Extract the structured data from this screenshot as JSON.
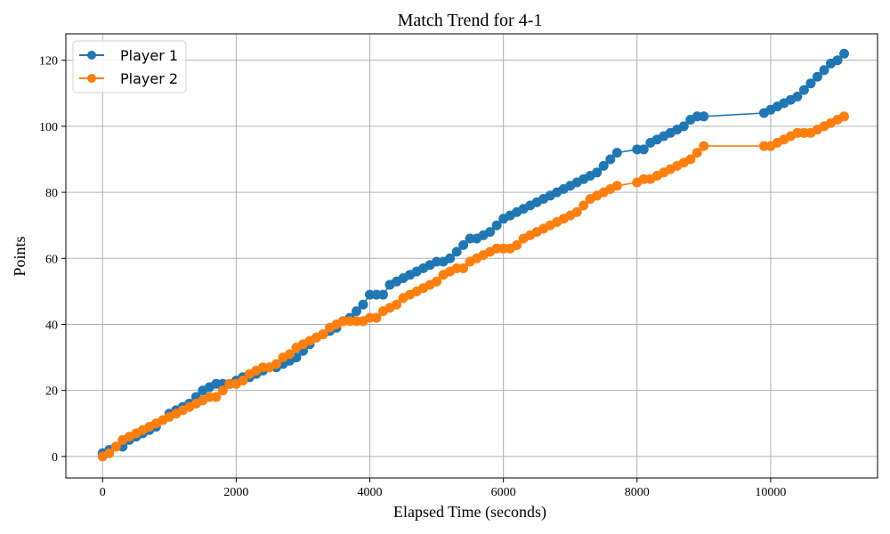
{
  "chart_data": {
    "type": "line",
    "title": "Match Trend for 4-1",
    "xlabel": "Elapsed Time (seconds)",
    "ylabel": "Points",
    "xlim": [
      -550,
      11600
    ],
    "ylim": [
      -6.5,
      128
    ],
    "x_ticks": [
      0,
      2000,
      4000,
      6000,
      8000,
      10000
    ],
    "y_ticks": [
      0,
      20,
      40,
      60,
      80,
      100,
      120
    ],
    "grid": true,
    "legend_position": "top-left",
    "series": [
      {
        "name": "Player 1",
        "color": "#1f77b4",
        "x": [
          0,
          100,
          200,
          300,
          400,
          500,
          600,
          700,
          800,
          900,
          1000,
          1100,
          1200,
          1300,
          1400,
          1500,
          1600,
          1700,
          1800,
          1900,
          2000,
          2100,
          2200,
          2300,
          2400,
          2500,
          2600,
          2700,
          2800,
          2900,
          3000,
          3100,
          3200,
          3300,
          3400,
          3500,
          3600,
          3700,
          3800,
          3900,
          4000,
          4100,
          4200,
          4300,
          4400,
          4500,
          4600,
          4700,
          4800,
          4900,
          5000,
          5100,
          5200,
          5300,
          5400,
          5500,
          5600,
          5700,
          5800,
          5900,
          6000,
          6100,
          6200,
          6300,
          6400,
          6500,
          6600,
          6700,
          6800,
          6900,
          7000,
          7100,
          7200,
          7300,
          7400,
          7500,
          7600,
          7700,
          8000,
          8100,
          8200,
          8300,
          8400,
          8500,
          8600,
          8700,
          8800,
          8900,
          9000,
          9900,
          10000,
          10100,
          10200,
          10300,
          10400,
          10500,
          10600,
          10700,
          10800,
          10900,
          11000,
          11100
        ],
        "y": [
          1,
          2,
          3,
          3,
          5,
          6,
          7,
          8,
          9,
          11,
          13,
          14,
          15,
          16,
          18,
          20,
          21,
          22,
          22,
          22,
          23,
          24,
          24,
          25,
          26,
          27,
          27,
          28,
          29,
          30,
          32,
          34,
          36,
          37,
          38,
          39,
          41,
          42,
          44,
          46,
          49,
          49,
          49,
          52,
          53,
          54,
          55,
          56,
          57,
          58,
          59,
          59,
          60,
          62,
          64,
          66,
          66,
          67,
          68,
          70,
          72,
          73,
          74,
          75,
          76,
          77,
          78,
          79,
          80,
          81,
          82,
          83,
          84,
          85,
          86,
          88,
          90,
          92,
          93,
          93,
          95,
          96,
          97,
          98,
          99,
          100,
          102,
          103,
          103,
          104,
          105,
          106,
          107,
          108,
          109,
          111,
          113,
          115,
          117,
          119,
          120,
          122
        ]
      },
      {
        "name": "Player 2",
        "color": "#ff7f0e",
        "x": [
          0,
          100,
          200,
          300,
          400,
          500,
          600,
          700,
          800,
          900,
          1000,
          1100,
          1200,
          1300,
          1400,
          1500,
          1600,
          1700,
          1800,
          1900,
          2000,
          2100,
          2200,
          2300,
          2400,
          2500,
          2600,
          2700,
          2800,
          2900,
          3000,
          3100,
          3200,
          3300,
          3400,
          3500,
          3600,
          3700,
          3800,
          3900,
          4000,
          4100,
          4200,
          4300,
          4400,
          4500,
          4600,
          4700,
          4800,
          4900,
          5000,
          5100,
          5200,
          5300,
          5400,
          5500,
          5600,
          5700,
          5800,
          5900,
          6000,
          6100,
          6200,
          6300,
          6400,
          6500,
          6600,
          6700,
          6800,
          6900,
          7000,
          7100,
          7200,
          7300,
          7400,
          7500,
          7600,
          7700,
          8000,
          8100,
          8200,
          8300,
          8400,
          8500,
          8600,
          8700,
          8800,
          8900,
          9000,
          9900,
          10000,
          10100,
          10200,
          10300,
          10400,
          10500,
          10600,
          10700,
          10800,
          10900,
          11000,
          11100
        ],
        "y": [
          0,
          1,
          3,
          5,
          6,
          7,
          8,
          9,
          10,
          11,
          12,
          13,
          14,
          15,
          16,
          17,
          18,
          18,
          20,
          22,
          22,
          23,
          25,
          26,
          27,
          27,
          28,
          30,
          31,
          33,
          34,
          35,
          36,
          37,
          39,
          40,
          41,
          41,
          41,
          41,
          42,
          42,
          44,
          45,
          46,
          48,
          49,
          50,
          51,
          52,
          53,
          55,
          56,
          57,
          57,
          59,
          60,
          61,
          62,
          63,
          63,
          63,
          64,
          66,
          67,
          68,
          69,
          70,
          71,
          72,
          73,
          74,
          76,
          78,
          79,
          80,
          81,
          82,
          83,
          84,
          84,
          85,
          86,
          87,
          88,
          89,
          90,
          92,
          94,
          94,
          94,
          95,
          96,
          97,
          98,
          98,
          98,
          99,
          100,
          101,
          102,
          103
        ]
      }
    ]
  }
}
